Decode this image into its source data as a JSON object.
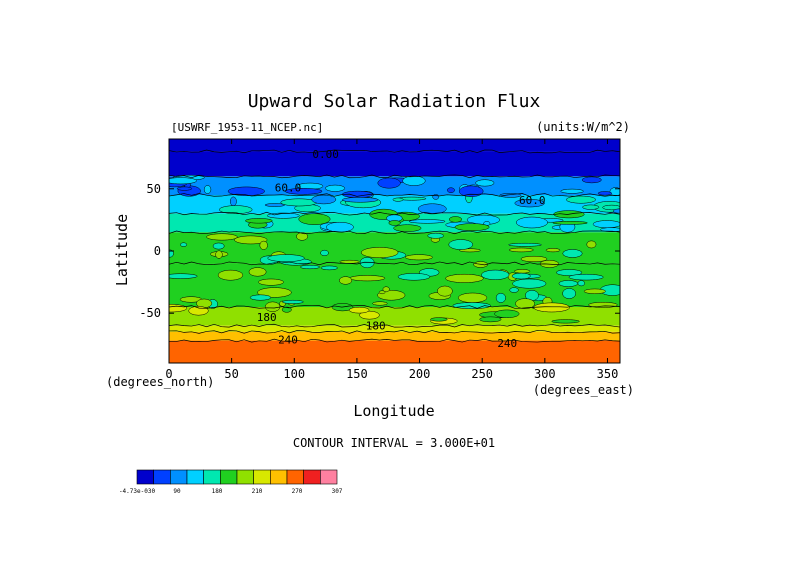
{
  "chart_data": {
    "type": "heatmap",
    "title": "Upward Solar Radiation Flux",
    "file_label": "[USWRF_1953-11_NCEP.nc]",
    "units_label": "(units:W/m^2)",
    "xlabel": "Longitude",
    "ylabel": "Latitude",
    "x_unit_label": "(degrees_east)",
    "y_unit_label": "(degrees_north)",
    "contour_interval_text": "CONTOUR INTERVAL = 3.000E+01",
    "xlim": [
      0,
      360
    ],
    "ylim": [
      -90,
      90
    ],
    "x_ticks": [
      0,
      50,
      100,
      150,
      200,
      250,
      300,
      350
    ],
    "y_ticks": [
      -50,
      0,
      50
    ],
    "contour_labels": [
      {
        "text": "0.00",
        "lon": 125,
        "lat": 78
      },
      {
        "text": "60.0",
        "lon": 95,
        "lat": 51
      },
      {
        "text": "60.0",
        "lon": 290,
        "lat": 41
      },
      {
        "text": "180",
        "lon": 78,
        "lat": -53
      },
      {
        "text": "180",
        "lon": 165,
        "lat": -60
      },
      {
        "text": "240",
        "lon": 95,
        "lat": -71
      },
      {
        "text": "240",
        "lon": 270,
        "lat": -74
      }
    ],
    "zonal_bands": [
      {
        "lat_top": 90,
        "lat_bottom": 80,
        "value": 0
      },
      {
        "lat_top": 80,
        "lat_bottom": 60,
        "value": 15
      },
      {
        "lat_top": 60,
        "lat_bottom": 45,
        "value": 75
      },
      {
        "lat_top": 45,
        "lat_bottom": 30,
        "value": 105
      },
      {
        "lat_top": 30,
        "lat_bottom": 15,
        "value": 135
      },
      {
        "lat_top": 15,
        "lat_bottom": -10,
        "value": 150
      },
      {
        "lat_top": -10,
        "lat_bottom": -45,
        "value": 165
      },
      {
        "lat_top": -45,
        "lat_bottom": -60,
        "value": 180
      },
      {
        "lat_top": -60,
        "lat_bottom": -65,
        "value": 210
      },
      {
        "lat_top": -65,
        "lat_bottom": -72,
        "value": 255
      },
      {
        "lat_top": -72,
        "lat_bottom": -90,
        "value": 285
      }
    ],
    "colorbar": {
      "colors": [
        "#0000cc",
        "#0040ff",
        "#0090ff",
        "#00d0ff",
        "#00e8b0",
        "#20d020",
        "#90e000",
        "#d8e800",
        "#ffc000",
        "#ff6400",
        "#f02020",
        "#ff80a0"
      ],
      "tick_labels": [
        "-4.73e-030",
        "90",
        "180",
        "210",
        "270",
        "307"
      ]
    }
  }
}
